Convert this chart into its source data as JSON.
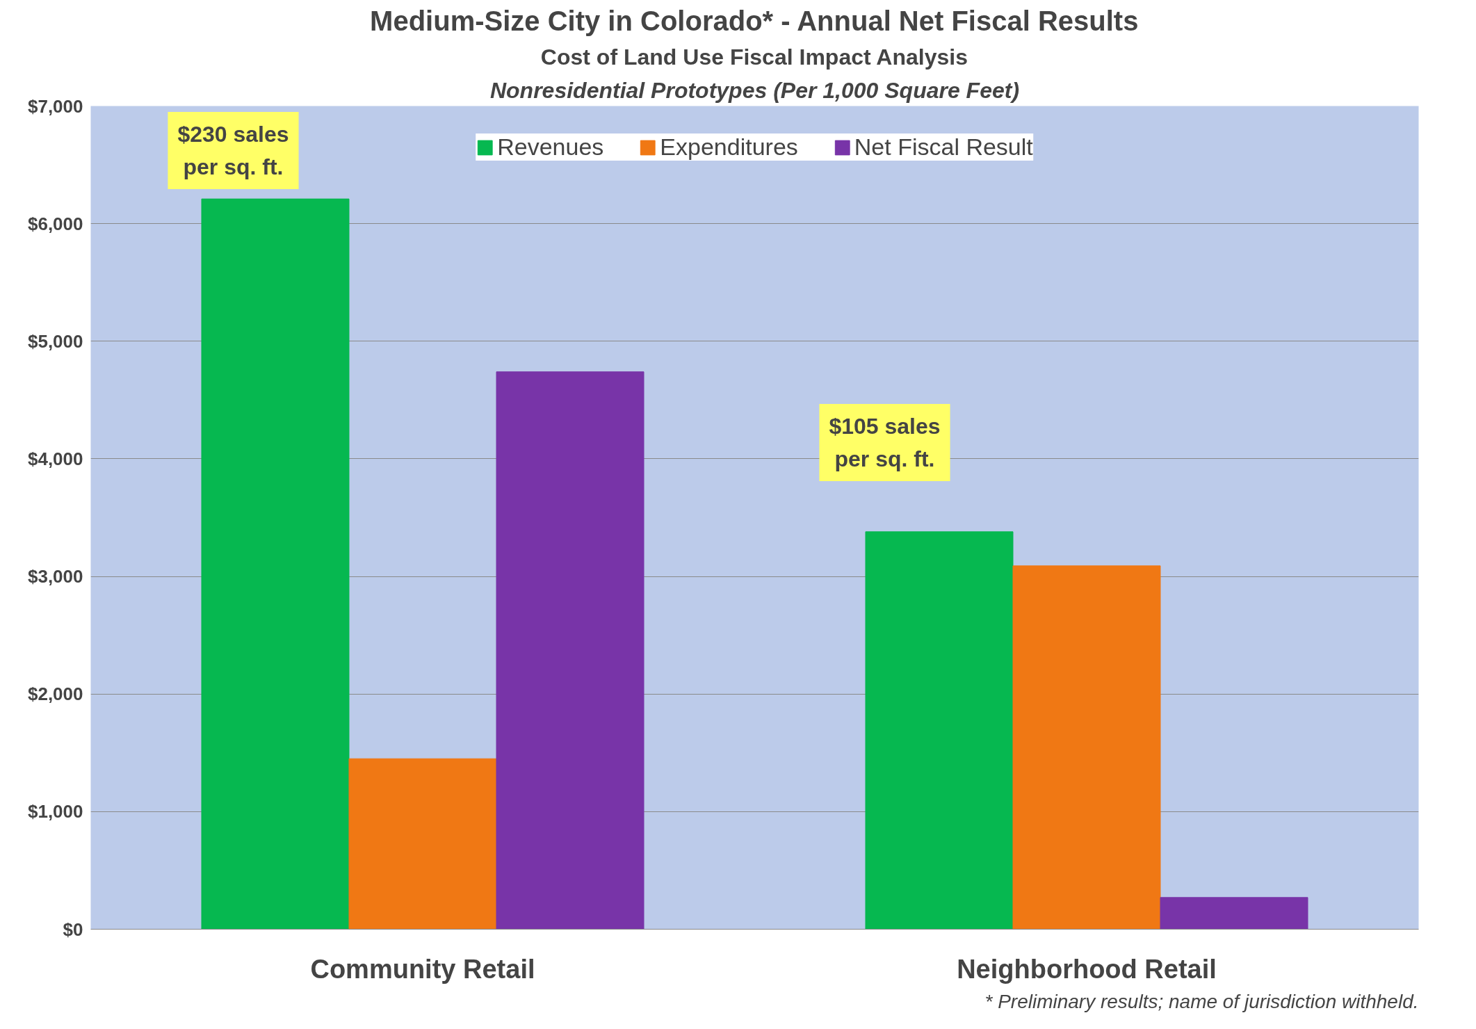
{
  "chart_data": {
    "type": "bar",
    "title": "Medium-Size City in Colorado* - Annual Net Fiscal Results",
    "subtitle": "Cost of Land Use Fiscal Impact Analysis",
    "categories": [
      "Community Retail",
      "Neighborhood Retail"
    ],
    "series": [
      {
        "name": "Revenues",
        "color": "#06b850",
        "values": [
          6210,
          3380
        ]
      },
      {
        "name": "Expenditures",
        "color": "#f07814",
        "values": [
          1450,
          3090
        ]
      },
      {
        "name": "Net Fiscal Result",
        "color": "#7834a8",
        "values": [
          4740,
          270
        ]
      }
    ],
    "ylim": [
      0,
      7000
    ],
    "yticks": [
      {
        "value": 0,
        "label": "$0"
      },
      {
        "value": 1000,
        "label": "$1,000"
      },
      {
        "value": 2000,
        "label": "$2,000"
      },
      {
        "value": 3000,
        "label": "$3,000"
      },
      {
        "value": 4000,
        "label": "$4,000"
      },
      {
        "value": 5000,
        "label": "$5,000"
      },
      {
        "value": 6000,
        "label": "$6,000"
      },
      {
        "value": 7000,
        "label": "$7,000"
      }
    ],
    "grid": "y",
    "legend": "top",
    "annotations": [
      "Nonresidential Prototypes (Per 1,000 Square Feet)",
      "$230 sales\nper sq. ft.",
      "$105 sales\nper sq. ft.",
      "* Preliminary results; name of jurisdiction withheld."
    ]
  }
}
